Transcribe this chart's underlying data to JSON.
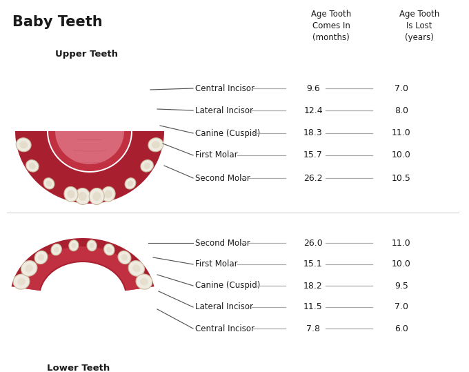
{
  "title": "Baby Teeth",
  "bg_color": "#ffffff",
  "upper_label": "Upper Teeth",
  "lower_label": "Lower Teeth",
  "col1_header": "Age Tooth\nComes In\n(months)",
  "col2_header": "Age Tooth\nIs Lost\n(years)",
  "upper_teeth": [
    {
      "name": "Central Incisor",
      "comes_in": "9.6",
      "lost": "7.0"
    },
    {
      "name": "Lateral Incisor",
      "comes_in": "12.4",
      "lost": "8.0"
    },
    {
      "name": "Canine (Cuspid)",
      "comes_in": "18.3",
      "lost": "11.0"
    },
    {
      "name": "First Molar",
      "comes_in": "15.7",
      "lost": "10.0"
    },
    {
      "name": "Second Molar",
      "comes_in": "26.2",
      "lost": "10.5"
    }
  ],
  "lower_teeth": [
    {
      "name": "Second Molar",
      "comes_in": "26.0",
      "lost": "11.0"
    },
    {
      "name": "First Molar",
      "comes_in": "15.1",
      "lost": "10.0"
    },
    {
      "name": "Canine (Cuspid)",
      "comes_in": "18.2",
      "lost": "9.5"
    },
    {
      "name": "Lateral Incisor",
      "comes_in": "11.5",
      "lost": "7.0"
    },
    {
      "name": "Central Incisor",
      "comes_in": "7.8",
      "lost": "6.0"
    }
  ],
  "text_color": "#1a1a1a",
  "line_color": "#555555",
  "data_line_color": "#aaaaaa",
  "gum_dark": "#a82030",
  "gum_mid": "#c03040",
  "gum_light": "#d04858",
  "gum_lighter": "#d86878",
  "tooth_fill": "#f0ebe0",
  "tooth_edge": "#c8b89a",
  "title_fontsize": 15,
  "header_fontsize": 8.5,
  "sublabel_fontsize": 9.5,
  "label_fontsize": 8.5,
  "data_fontsize": 9
}
